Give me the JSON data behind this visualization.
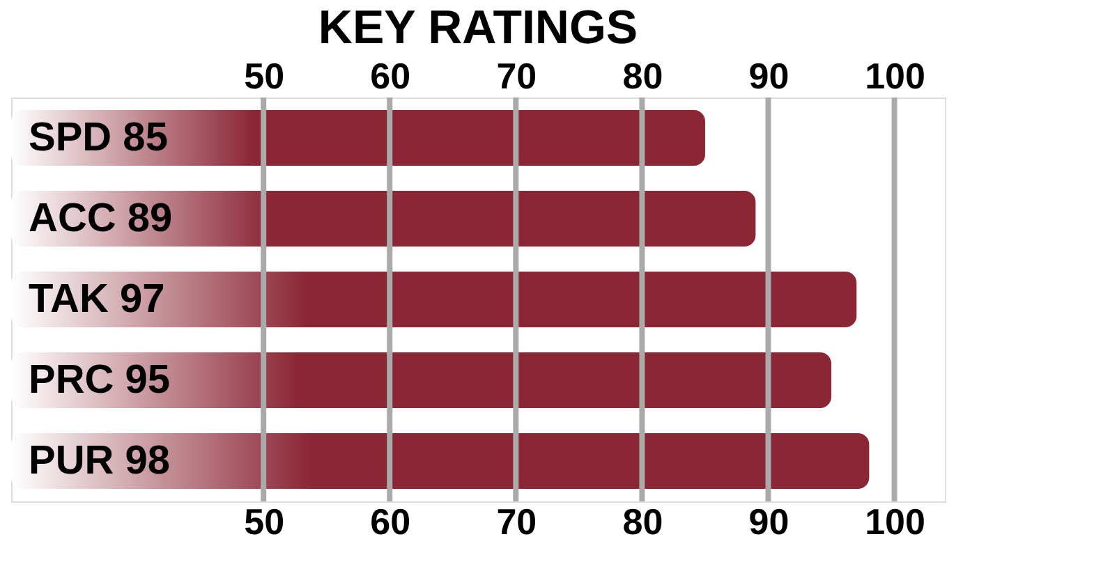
{
  "chart_data": {
    "type": "bar",
    "orientation": "horizontal",
    "title": "KEY RATINGS",
    "categories": [
      "SPD 85",
      "ACC 89",
      "TAK 97",
      "PRC 95",
      "PUR 98"
    ],
    "values": [
      85,
      89,
      97,
      95,
      98
    ],
    "color": "#8b2635",
    "xlim": [
      30,
      104
    ],
    "xticks": [
      50,
      60,
      70,
      80,
      90,
      100
    ],
    "x2lim": [
      30,
      104
    ],
    "x2ticks": [
      50,
      60,
      70,
      80,
      90,
      100
    ],
    "grid": "x"
  }
}
